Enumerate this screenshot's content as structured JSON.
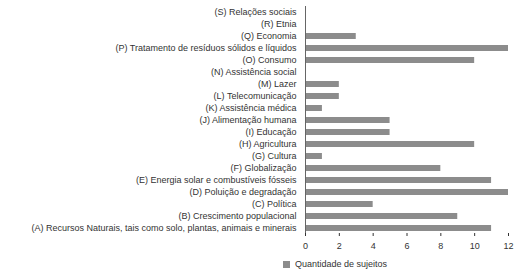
{
  "chart_data": {
    "type": "bar",
    "orientation": "horizontal",
    "categories": [
      "(S) Relações sociais",
      "(R) Etnia",
      "(Q) Economia",
      "(P) Tratamento de resíduos sólidos e líquidos",
      "(O) Consumo",
      "(N) Assistência social",
      "(M) Lazer",
      "(L) Telecomunicação",
      "(K) Assistência médica",
      "(J) Alimentação humana",
      "(I) Educação",
      "(H) Agricultura",
      "(G) Cultura",
      "(F) Globalização",
      "(E) Energia solar e combustíveis fósseis",
      "(D) Poluição e degradação",
      "(C) Política",
      "(B) Crescimento populacional",
      "(A) Recursos Naturais, tais como solo, plantas, animais e minerais"
    ],
    "series": [
      {
        "name": "Quantidade de sujeitos",
        "color": "#8c8c8c",
        "values": [
          0,
          0,
          3,
          12,
          10,
          0,
          2,
          2,
          1,
          5,
          5,
          10,
          1,
          8,
          11,
          12,
          4,
          9,
          11
        ]
      }
    ],
    "xlim": [
      0,
      12
    ],
    "xticks": [
      0,
      2,
      4,
      6,
      8,
      10,
      12
    ],
    "grid": false,
    "legend": "bottom"
  }
}
